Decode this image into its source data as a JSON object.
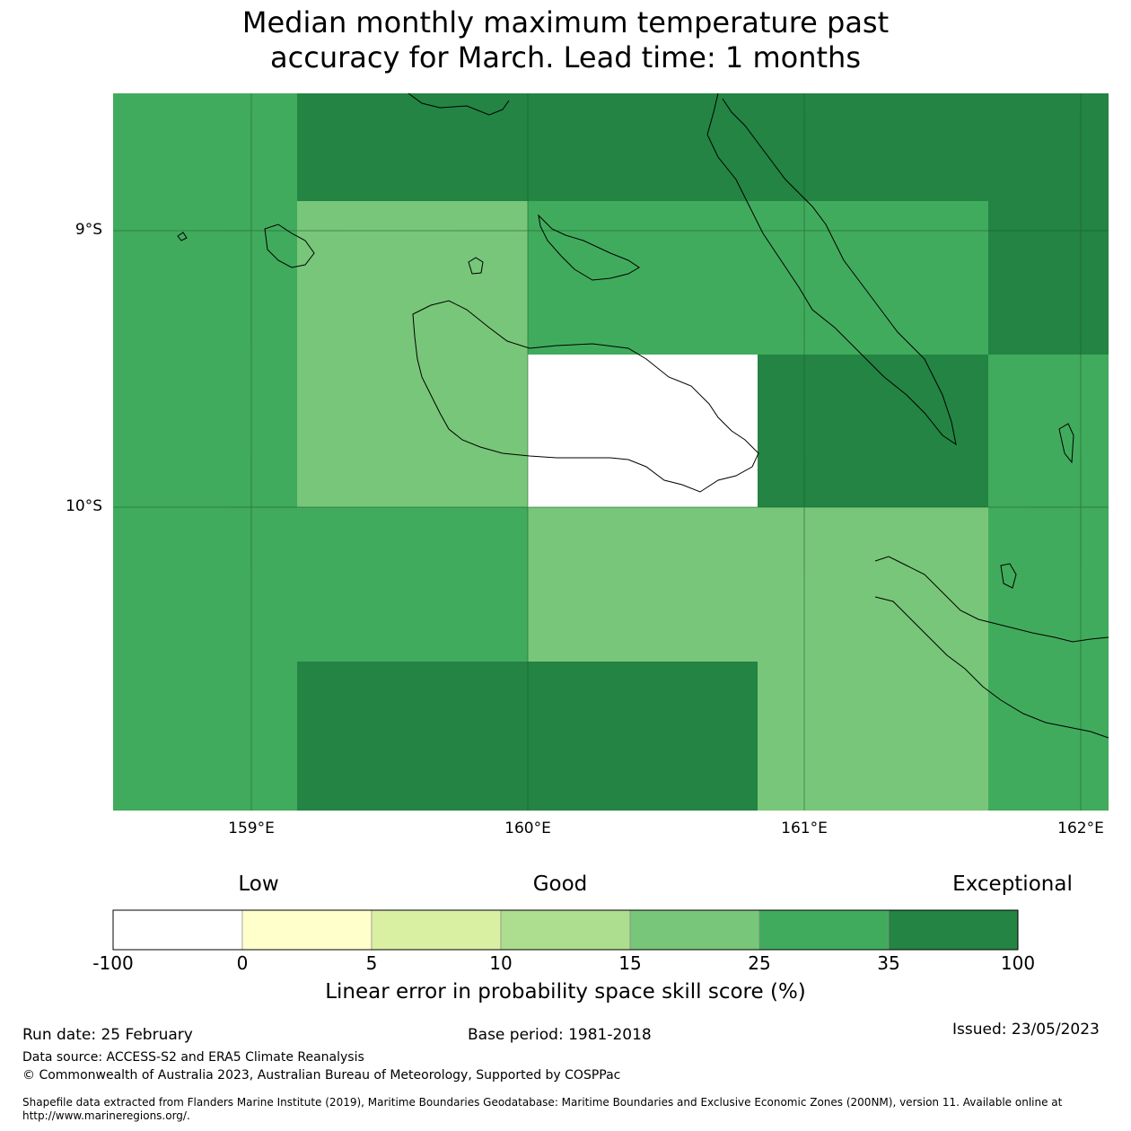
{
  "title_line1": "Median monthly maximum temperature past",
  "title_line2": "accuracy for March. Lead time: 1 months",
  "map": {
    "lat_labels": [
      "9°S",
      "10°S"
    ],
    "lon_labels": [
      "159°E",
      "160°E",
      "161°E",
      "162°E"
    ],
    "grid_legend_classes": [
      "-100 to 0",
      "0 to 5",
      "5 to 10",
      "10 to 15",
      "15 to 25",
      "25 to 35",
      "35 to 100"
    ],
    "cells": [
      {
        "row": 0,
        "col": 0,
        "cls": "25-35"
      },
      {
        "row": 0,
        "col": 1,
        "cls": "35-100"
      },
      {
        "row": 0,
        "col": 2,
        "cls": "35-100"
      },
      {
        "row": 0,
        "col": 3,
        "cls": "35-100"
      },
      {
        "row": 0,
        "col": 4,
        "cls": "35-100"
      },
      {
        "row": 1,
        "col": 0,
        "cls": "25-35"
      },
      {
        "row": 1,
        "col": 1,
        "cls": "15-25"
      },
      {
        "row": 1,
        "col": 2,
        "cls": "25-35"
      },
      {
        "row": 1,
        "col": 3,
        "cls": "25-35"
      },
      {
        "row": 1,
        "col": 4,
        "cls": "35-100"
      },
      {
        "row": 2,
        "col": 0,
        "cls": "25-35"
      },
      {
        "row": 2,
        "col": 1,
        "cls": "15-25"
      },
      {
        "row": 2,
        "col": 2,
        "cls": "-100-0"
      },
      {
        "row": 2,
        "col": 3,
        "cls": "35-100"
      },
      {
        "row": 2,
        "col": 4,
        "cls": "25-35"
      },
      {
        "row": 3,
        "col": 0,
        "cls": "25-35"
      },
      {
        "row": 3,
        "col": 1,
        "cls": "25-35"
      },
      {
        "row": 3,
        "col": 2,
        "cls": "15-25"
      },
      {
        "row": 3,
        "col": 3,
        "cls": "15-25"
      },
      {
        "row": 3,
        "col": 4,
        "cls": "25-35"
      },
      {
        "row": 4,
        "col": 0,
        "cls": "25-35"
      },
      {
        "row": 4,
        "col": 1,
        "cls": "35-100"
      },
      {
        "row": 4,
        "col": 2,
        "cls": "35-100"
      },
      {
        "row": 4,
        "col": 3,
        "cls": "15-25"
      },
      {
        "row": 4,
        "col": 4,
        "cls": "25-35"
      }
    ]
  },
  "colorbar": {
    "head_low": "Low",
    "head_good": "Good",
    "head_exceptional": "Exceptional",
    "ticks": [
      "-100",
      "0",
      "5",
      "10",
      "15",
      "25",
      "35",
      "100"
    ],
    "colors": [
      "#ffffff",
      "#ffffcc",
      "#d9f0a3",
      "#addd8e",
      "#78c679",
      "#41ab5d",
      "#238443"
    ],
    "label": "Linear error in probability space skill score (%)"
  },
  "footer": {
    "run_date": "Run date: 25 February",
    "base_period": "Base period: 1981-2018",
    "issued": "Issued: 23/05/2023",
    "data_source": "Data source: ACCESS-S2 and ERA5 Climate Reanalysis",
    "copyright": "© Commonwealth of Australia 2023, Australian Bureau of Meteorology, Supported by COSPPac",
    "shapefile": "Shapefile data extracted from Flanders Marine Institute (2019), Maritime Boundaries Geodatabase: Maritime Boundaries and Exclusive Economic Zones (200NM), version 11. Available online at http://www.marineregions.org/."
  }
}
